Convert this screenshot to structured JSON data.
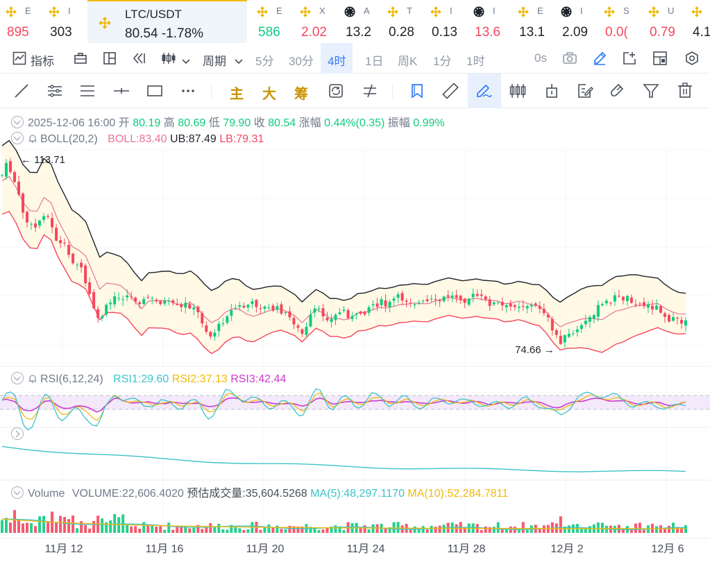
{
  "ticker": [
    {
      "name": "E",
      "price": "895",
      "trend": "dn",
      "icon": "bnb-icon"
    },
    {
      "name": "I",
      "price": "303",
      "trend": "nt",
      "icon": "bnb-icon"
    }
  ],
  "ticker_rest": [
    {
      "name": "E",
      "price": "586",
      "trend": "up",
      "icon": "bnb-icon"
    },
    {
      "name": "X",
      "price": "2.02",
      "trend": "dn",
      "icon": "bnb-icon"
    },
    {
      "name": "A",
      "price": "13.2",
      "trend": "nt",
      "icon": "token-icon"
    },
    {
      "name": "T",
      "price": "0.28",
      "trend": "nt",
      "icon": "bnb-icon"
    },
    {
      "name": "I",
      "price": "0.13",
      "trend": "nt",
      "icon": "bnb-icon"
    },
    {
      "name": "I",
      "price": "13.6",
      "trend": "dn",
      "icon": "token-icon"
    },
    {
      "name": "E",
      "price": "13.1",
      "trend": "nt",
      "icon": "bnb-icon"
    },
    {
      "name": "I",
      "price": "2.09",
      "trend": "nt",
      "icon": "token-icon"
    },
    {
      "name": "S",
      "price": "0.0(",
      "trend": "dn",
      "icon": "bnb-icon"
    },
    {
      "name": "U",
      "price": "0.79",
      "trend": "dn",
      "icon": "bnb-icon"
    },
    {
      "name": "I",
      "price": "4.1",
      "trend": "nt",
      "icon": "bnb-icon"
    }
  ],
  "active": {
    "symbol": "LTC/USDT",
    "value": "80.54 -1.78%"
  },
  "periodbar": {
    "indicators": "指标",
    "period": "周期",
    "intervals": [
      "5分",
      "30分",
      "4时",
      "1日",
      "周K",
      "1分",
      "1时"
    ],
    "selected_interval": "4时",
    "countdown": "0s"
  },
  "drawbar": {
    "labels": [
      "主",
      "大",
      "筹"
    ]
  },
  "ohlc": {
    "date": "2025-12-06 16:00",
    "open_k": "开",
    "open": "80.19",
    "high_k": "高",
    "high": "80.69",
    "low_k": "低",
    "low": "79.90",
    "close_k": "收",
    "close": "80.54",
    "chg_k": "涨幅",
    "chg": "0.44%(0.35)",
    "amp_k": "振幅",
    "amp": "0.99%"
  },
  "boll": {
    "name": "BOLL(20,2)",
    "mid": "BOLL:83.40",
    "ub": "UB:87.49",
    "lb": "LB:79.31"
  },
  "markers": {
    "high": "113.71",
    "low": "74.66"
  },
  "rsi": {
    "name": "RSI(6,12,24)",
    "rsi1": "RSI1:29.60",
    "rsi2": "RSI2:37.13",
    "rsi3": "RSI3:42.44"
  },
  "volume": {
    "name": "Volume",
    "volume": "VOLUME:22,606.4020",
    "est": "预估成交量:35,604.5268",
    "ma5": "MA(5):48,297.1170",
    "ma10": "MA(10):52,284.7811"
  },
  "xaxis": [
    "11月 12",
    "11月 16",
    "11月 20",
    "11月 24",
    "11月 28",
    "12月 2",
    "12月 6"
  ],
  "colors": {
    "up": "#0ecb81",
    "down": "#f6465d",
    "accent": "#2f7bf5",
    "brand": "#f0b90b",
    "boll_mid": "#e8739b",
    "boll_ub": "#1e2329",
    "boll_lb": "#f6465d",
    "rsi1": "#3cc3c8",
    "rsi2": "#f0b90b",
    "rsi3": "#cc3ad0",
    "ma5": "#3cc3c8",
    "ma10": "#f0b90b"
  }
}
